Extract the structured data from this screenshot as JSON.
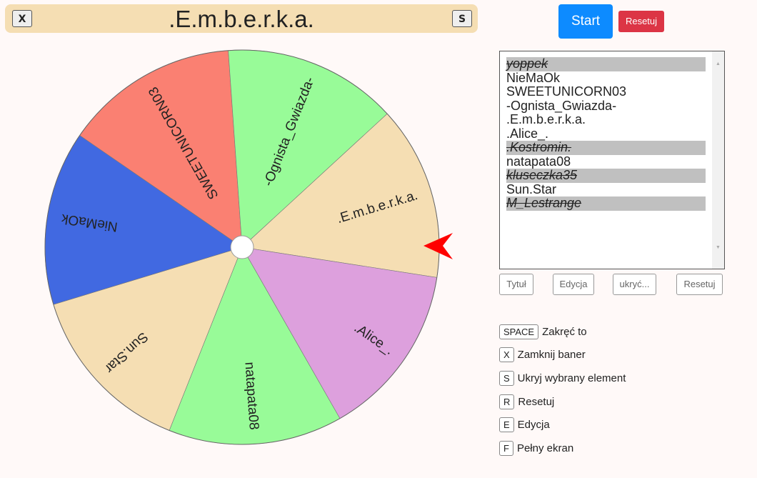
{
  "banner": {
    "title": ".E.m.b.e.r.k.a.",
    "close_label": "X",
    "hide_label": "S"
  },
  "controls": {
    "start_label": "Start",
    "reset_label": "Resetuj"
  },
  "wheel": {
    "segments": [
      {
        "label": ".E.m.b.e.r.k.a.",
        "color": "#f5deb3"
      },
      {
        "label": ".Alice_.",
        "color": "#dda0dd"
      },
      {
        "label": "natapata08",
        "color": "#98fb98"
      },
      {
        "label": "Sun.Star",
        "color": "#f5deb3"
      },
      {
        "label": "NieMaOk",
        "color": "#4169e1"
      },
      {
        "label": "SWEETUNICORN03",
        "color": "#fa8072"
      },
      {
        "label": "-Ognista_Gwiazda-",
        "color": "#98fb98"
      }
    ],
    "pointer_color": "#ff0000"
  },
  "entries": [
    {
      "text": "yoppek",
      "hidden": true
    },
    {
      "text": "NieMaOk",
      "hidden": false
    },
    {
      "text": "SWEETUNICORN03",
      "hidden": false
    },
    {
      "text": "-Ognista_Gwiazda-",
      "hidden": false
    },
    {
      "text": ".E.m.b.e.r.k.a.",
      "hidden": false
    },
    {
      "text": ".Alice_.",
      "hidden": false
    },
    {
      "text": ".Kostromin.",
      "hidden": true
    },
    {
      "text": "natapata08",
      "hidden": false
    },
    {
      "text": "kluseczka35",
      "hidden": true
    },
    {
      "text": "Sun.Star",
      "hidden": false
    },
    {
      "text": "M_Lestrange",
      "hidden": true
    }
  ],
  "list_buttons": {
    "title": "Tytuł",
    "edit": "Edycja",
    "hide": "ukryć...",
    "reset": "Resetuj"
  },
  "shortcuts": [
    {
      "key": "SPACE",
      "label": "Zakręć to"
    },
    {
      "key": "X",
      "label": "Zamknij baner"
    },
    {
      "key": "S",
      "label": "Ukryj wybrany element"
    },
    {
      "key": "R",
      "label": "Resetuj"
    },
    {
      "key": "E",
      "label": "Edycja"
    },
    {
      "key": "F",
      "label": "Pełny ekran"
    }
  ]
}
